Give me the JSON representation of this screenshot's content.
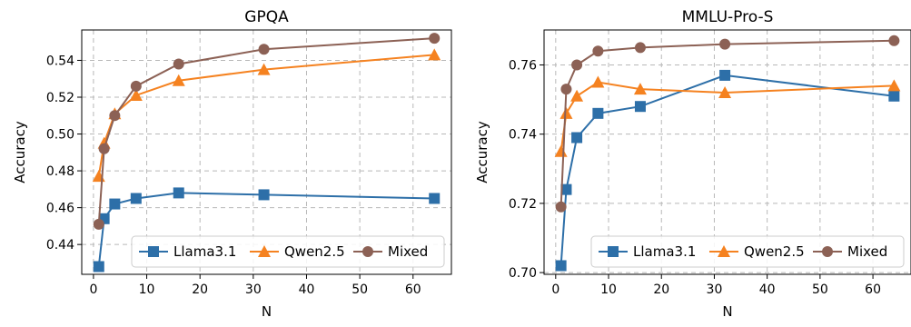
{
  "chart_data": [
    {
      "type": "line",
      "title": "GPQA",
      "xlabel": "N",
      "ylabel": "Accuracy",
      "xlim": [
        -2.2,
        67.2
      ],
      "ylim": [
        0.4238,
        0.5565
      ],
      "xticks": [
        0,
        10,
        20,
        30,
        40,
        50,
        60
      ],
      "xtick_labels": [
        "0",
        "10",
        "20",
        "30",
        "40",
        "50",
        "60"
      ],
      "yticks": [
        0.44,
        0.46,
        0.48,
        0.5,
        0.52,
        0.54
      ],
      "ytick_labels": [
        "0.44",
        "0.46",
        "0.48",
        "0.50",
        "0.52",
        "0.54"
      ],
      "grid": true,
      "legend_position": "lower-right",
      "x": [
        1,
        2,
        4,
        8,
        16,
        32,
        64
      ],
      "series": [
        {
          "name": "Llama3.1",
          "marker": "square",
          "color": "#2d6fa8",
          "values": [
            0.428,
            0.454,
            0.462,
            0.465,
            0.468,
            0.467,
            0.465
          ]
        },
        {
          "name": "Qwen2.5",
          "marker": "triangle",
          "color": "#f58220",
          "values": [
            0.477,
            0.495,
            0.511,
            0.521,
            0.529,
            0.535,
            0.543
          ]
        },
        {
          "name": "Mixed",
          "marker": "circle",
          "color": "#8c6155",
          "values": [
            0.451,
            0.492,
            0.51,
            0.526,
            0.538,
            0.546,
            0.552
          ]
        }
      ]
    },
    {
      "type": "line",
      "title": "MMLU-Pro-S",
      "xlabel": "N",
      "ylabel": "Accuracy",
      "xlim": [
        -2.2,
        67.2
      ],
      "ylim": [
        0.6995,
        0.7701
      ],
      "xticks": [
        0,
        10,
        20,
        30,
        40,
        50,
        60
      ],
      "xtick_labels": [
        "0",
        "10",
        "20",
        "30",
        "40",
        "50",
        "60"
      ],
      "yticks": [
        0.7,
        0.72,
        0.74,
        0.76
      ],
      "ytick_labels": [
        "0.70",
        "0.72",
        "0.74",
        "0.76"
      ],
      "grid": true,
      "legend_position": "lower-right",
      "x": [
        1,
        2,
        4,
        8,
        16,
        32,
        64
      ],
      "series": [
        {
          "name": "Llama3.1",
          "marker": "square",
          "color": "#2d6fa8",
          "values": [
            0.702,
            0.724,
            0.739,
            0.746,
            0.748,
            0.757,
            0.751
          ]
        },
        {
          "name": "Qwen2.5",
          "marker": "triangle",
          "color": "#f58220",
          "values": [
            0.735,
            0.746,
            0.751,
            0.755,
            0.753,
            0.752,
            0.754
          ]
        },
        {
          "name": "Mixed",
          "marker": "circle",
          "color": "#8c6155",
          "values": [
            0.719,
            0.753,
            0.76,
            0.764,
            0.765,
            0.766,
            0.767
          ]
        }
      ]
    }
  ]
}
